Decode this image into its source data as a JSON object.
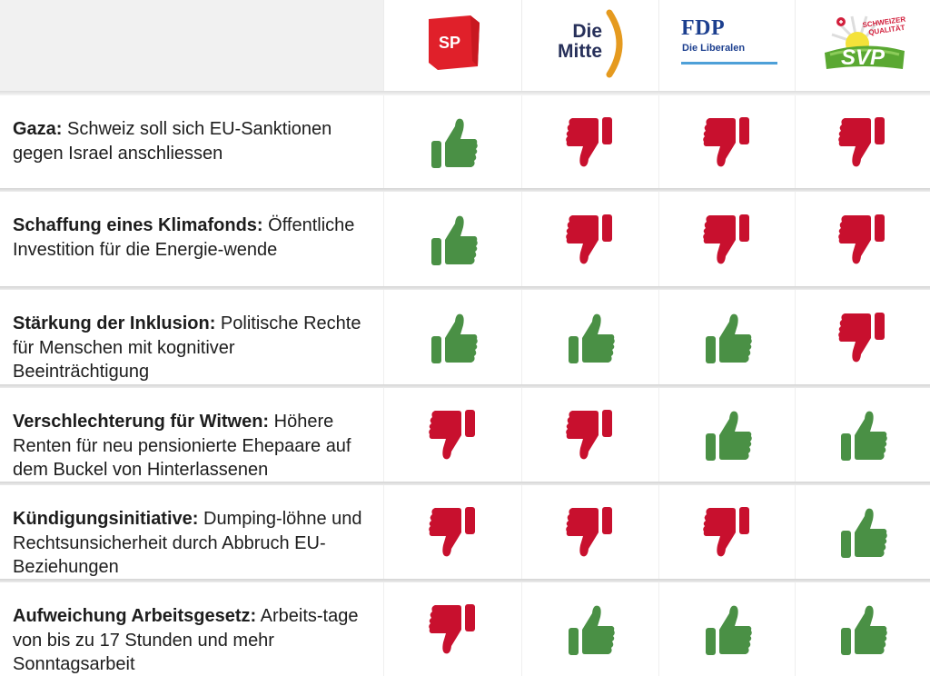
{
  "colors": {
    "yes": "#4a9045",
    "no": "#c8102e",
    "sp_red": "#e0202a",
    "mitte_navy": "#27305a",
    "mitte_orange": "#e59a1f",
    "fdp_blue": "#1c3f8f",
    "fdp_line": "#4ea0d8",
    "svp_green": "#5aa832"
  },
  "parties": [
    {
      "id": "sp",
      "logo_text": "SP"
    },
    {
      "id": "mitte",
      "logo_line1": "Die",
      "logo_line2": "Mitte"
    },
    {
      "id": "fdp",
      "logo_title": "FDP",
      "logo_sub": "Die Liberalen"
    },
    {
      "id": "svp",
      "logo_text": "SVP",
      "slogan_line1": "SCHWEIZER",
      "slogan_line2": "QUALITÄT"
    }
  ],
  "rows": [
    {
      "title": "Gaza:",
      "text": " Schweiz soll sich EU-Sanktionen gegen Israel anschliessen",
      "votes": [
        "yes",
        "no",
        "no",
        "no"
      ]
    },
    {
      "title": "Schaffung eines Klimafonds:",
      "text": " Öffentliche Investition für die Energie-wende",
      "votes": [
        "yes",
        "no",
        "no",
        "no"
      ]
    },
    {
      "title": "Stärkung der Inklusion:",
      "text": " Politische Rechte für Menschen mit kognitiver Beeinträchtigung",
      "votes": [
        "yes",
        "yes",
        "yes",
        "no"
      ]
    },
    {
      "title": "Verschlechterung für Witwen:",
      "text": " Höhere Renten für neu pensionierte Ehepaare auf dem Buckel von Hinterlassenen",
      "votes": [
        "no",
        "no",
        "yes",
        "yes"
      ]
    },
    {
      "title": "Kündigungsinitiative:",
      "text": " Dumping-löhne und Rechtsunsicherheit durch Abbruch EU-Beziehungen",
      "votes": [
        "no",
        "no",
        "no",
        "yes"
      ]
    },
    {
      "title": "Aufweichung Arbeitsgesetz:",
      "text": " Arbeits-tage von bis zu 17 Stunden und mehr Sonntagsarbeit",
      "votes": [
        "no",
        "yes",
        "yes",
        "yes"
      ]
    }
  ]
}
